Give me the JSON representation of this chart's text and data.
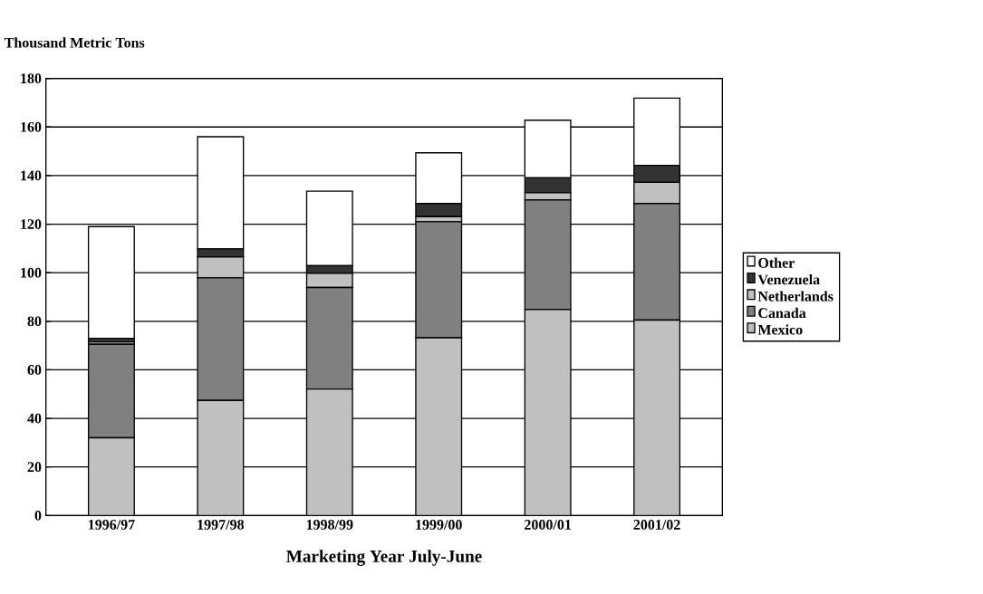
{
  "chart_data": {
    "type": "bar",
    "stacked": true,
    "ylabel": "Thousand Metric Tons",
    "xlabel": "Marketing Year July-June",
    "categories": [
      "1996/97",
      "1997/98",
      "1998/99",
      "1999/00",
      "2000/01",
      "2001/02"
    ],
    "series": [
      {
        "name": "Mexico",
        "color": "#c0c0c0",
        "values": [
          32,
          47.4,
          52.1,
          73.2,
          84.8,
          80.5
        ]
      },
      {
        "name": "Canada",
        "color": "#808080",
        "values": [
          38.5,
          50.5,
          41.8,
          47.8,
          45.2,
          48
        ]
      },
      {
        "name": "Netherlands",
        "color": "#c0c0c0",
        "values": [
          1,
          8.6,
          5.9,
          2.1,
          2.9,
          8.7
        ]
      },
      {
        "name": "Venezuela",
        "color": "#333333",
        "values": [
          1.5,
          3.3,
          3.1,
          5.4,
          6.2,
          7
        ]
      },
      {
        "name": "Other",
        "color": "#ffffff",
        "values": [
          46,
          46.2,
          30.7,
          20.9,
          23.7,
          27.7
        ]
      }
    ],
    "ylim": [
      0,
      180
    ],
    "yticks": [
      0,
      20,
      40,
      60,
      80,
      100,
      120,
      140,
      160,
      180
    ],
    "grid": "y",
    "legend": "right"
  }
}
